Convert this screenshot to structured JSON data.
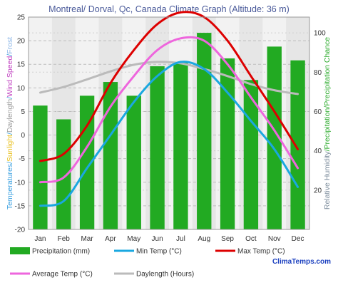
{
  "chart_data": {
    "type": "bar",
    "title": "Montreal/ Dorval, Qc, Canada Climate Graph (Altitude: 36 m)",
    "categories": [
      "Jan",
      "Feb",
      "Mar",
      "Apr",
      "May",
      "Jun",
      "Jul",
      "Aug",
      "Sep",
      "Oct",
      "Nov",
      "Dec"
    ],
    "left_axis": {
      "label_parts": [
        {
          "text": "Temperatures",
          "color": "#3aa0e0"
        },
        {
          "text": "/",
          "color": "#3aa0e0"
        },
        {
          "text": "Sunlight",
          "color": "#e8c020"
        },
        {
          "text": "/",
          "color": "#3aa0e0"
        },
        {
          "text": "Daylength",
          "color": "#9e9e9e"
        },
        {
          "text": "/",
          "color": "#3aa0e0"
        },
        {
          "text": "Wind Speed",
          "color": "#c040c0"
        },
        {
          "text": "/",
          "color": "#3aa0e0"
        },
        {
          "text": "Frost",
          "color": "#8fb8e8"
        }
      ],
      "ylim": [
        -20,
        25
      ],
      "ticks": [
        "-20",
        "-15",
        "-10",
        "-5",
        "0",
        "5",
        "10",
        "15",
        "20",
        "25"
      ]
    },
    "right_axis": {
      "label_parts": [
        {
          "text": "Relative Humidity",
          "color": "#7a8a9a"
        },
        {
          "text": "/",
          "color": "#2aaa2a"
        },
        {
          "text": "Precipitation",
          "color": "#2aaa2a"
        },
        {
          "text": "/",
          "color": "#2aaa2a"
        },
        {
          "text": "Precipitation Chance",
          "color": "#2aaa2a"
        }
      ],
      "ylim": [
        0,
        108
      ],
      "ticks": [
        "20",
        "40",
        "60",
        "80",
        "100"
      ]
    },
    "series": [
      {
        "name": "Precipitation (mm)",
        "type": "bar",
        "axis": "right",
        "color": "#22aa22",
        "values": [
          63,
          56,
          68,
          75,
          68,
          83,
          85,
          100,
          87,
          76,
          93,
          86
        ]
      },
      {
        "name": "Min Temp (°C)",
        "type": "line",
        "axis": "left",
        "color": "#1aa8e0",
        "values": [
          -15,
          -14,
          -7,
          0,
          7,
          12.5,
          15.5,
          14,
          9,
          3,
          -3,
          -11
        ]
      },
      {
        "name": "Max Temp (°C)",
        "type": "line",
        "axis": "left",
        "color": "#dd0000",
        "values": [
          -5.5,
          -4,
          2,
          11,
          18,
          23.5,
          26,
          25,
          20,
          12.5,
          5,
          -3
        ]
      },
      {
        "name": "Average Temp (°C)",
        "type": "line",
        "axis": "left",
        "color": "#ee66dd",
        "values": [
          -10,
          -9,
          -2.5,
          6,
          12.5,
          18,
          20.5,
          20,
          15,
          8,
          1,
          -7
        ]
      },
      {
        "name": "Daylength (Hours)",
        "type": "line",
        "axis": "left",
        "color": "#bbbbbb",
        "values": [
          9,
          10.2,
          11.8,
          13.5,
          14.9,
          15.5,
          15.2,
          14,
          12.5,
          10.8,
          9.5,
          8.7
        ]
      }
    ],
    "grid": true,
    "legend": "bottom",
    "watermark": "ClimaTemps.com"
  }
}
